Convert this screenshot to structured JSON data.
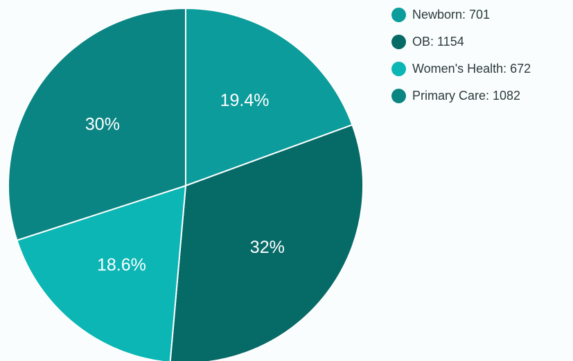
{
  "chart_data": {
    "type": "pie",
    "categories": [
      "Newborn",
      "OB",
      "Women's Health",
      "Primary Care"
    ],
    "values": [
      701,
      1154,
      672,
      1082
    ],
    "percent_labels": [
      "19.4%",
      "32%",
      "18.6%",
      "30%"
    ],
    "legend_labels": [
      "Newborn: 701",
      "OB: 1154",
      "Women's Health: 672",
      "Primary Care: 1082"
    ],
    "colors": [
      "#0c9c9b",
      "#066a67",
      "#0bb6b5",
      "#0b8583"
    ],
    "start_angle_deg": 0,
    "direction": "clockwise",
    "legend_position": "top-right"
  }
}
